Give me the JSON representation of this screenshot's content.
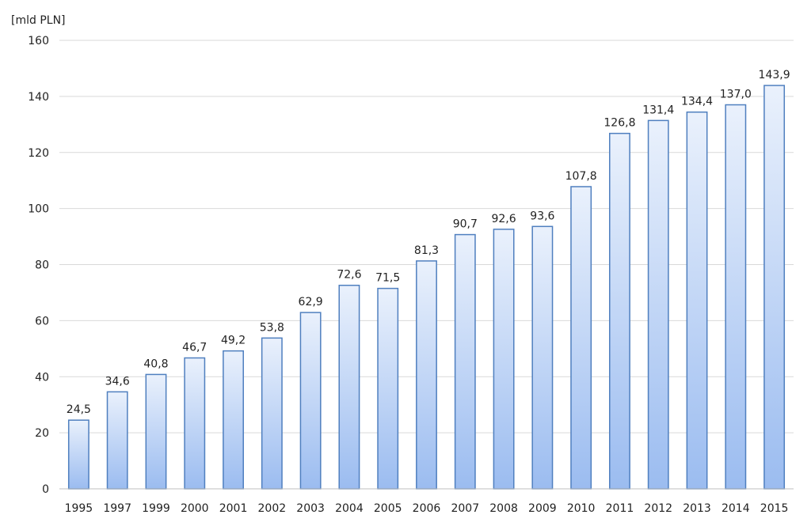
{
  "chart_data": {
    "type": "bar",
    "unit_label": "[mld PLN]",
    "categories": [
      "1995",
      "1997",
      "1999",
      "2000",
      "2001",
      "2002",
      "2003",
      "2004",
      "2005",
      "2006",
      "2007",
      "2008",
      "2009",
      "2010",
      "2011",
      "2012",
      "2013",
      "2014",
      "2015"
    ],
    "values": [
      24.5,
      34.6,
      40.8,
      46.7,
      49.2,
      53.8,
      62.9,
      72.6,
      71.5,
      81.3,
      90.7,
      92.6,
      93.6,
      107.8,
      126.8,
      131.4,
      134.4,
      137.0,
      143.9
    ],
    "data_labels": [
      "24,5",
      "34,6",
      "40,8",
      "46,7",
      "49,2",
      "53,8",
      "62,9",
      "72,6",
      "71,5",
      "81,3",
      "90,7",
      "92,6",
      "93,6",
      "107,8",
      "126,8",
      "131,4",
      "134,4",
      "137,0",
      "143,9"
    ],
    "yticks": [
      0,
      20,
      40,
      60,
      80,
      100,
      120,
      140,
      160
    ],
    "ylim": [
      0,
      160
    ],
    "grid": true,
    "legend": "none",
    "colors": {
      "bar_top": "#eaf1fc",
      "bar_bottom": "#9bbcf0",
      "bar_border": "#4f7fbf",
      "grid": "#d9d9d9"
    }
  }
}
